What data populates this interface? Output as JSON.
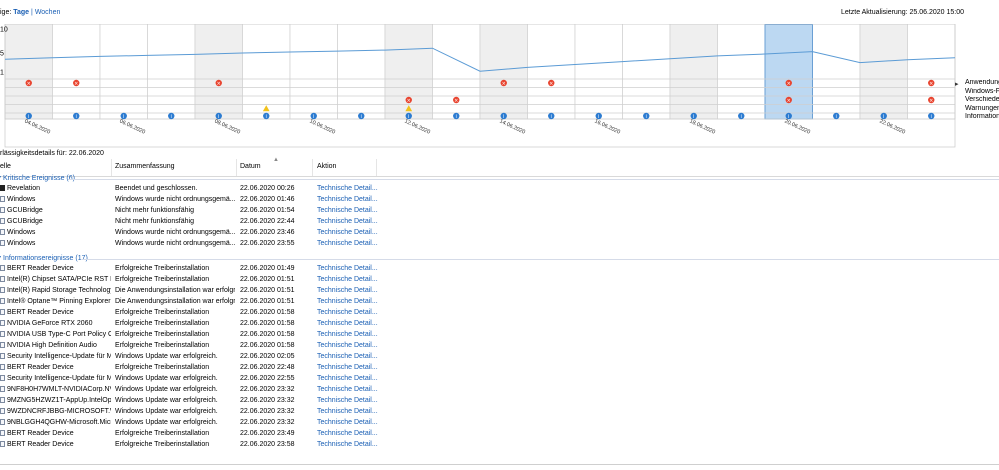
{
  "top": {
    "view_label": "ige:",
    "view_days": "Tage",
    "separator": "|",
    "view_weeks": "Wochen",
    "last_update": "Letzte Aktualisierung: 25.06.2020 15:00"
  },
  "chart": {
    "y_ticks": [
      "10",
      "5",
      "1"
    ],
    "stability_index": [
      3.7,
      4.0,
      4.3,
      4.5,
      4.7,
      5.0,
      5.2,
      5.4,
      5.6,
      6.0,
      1.2,
      2.0,
      2.6,
      3.2,
      3.8,
      4.4,
      4.8,
      5.3,
      3.0,
      3.6,
      4.0
    ],
    "selected_column": 16,
    "gray_columns": [
      0,
      4,
      8,
      10,
      14,
      16,
      18
    ],
    "date_labels": [
      "04.06.2020",
      "06.06.2020",
      "08.06.2020",
      "10.06.2020",
      "12.06.2020",
      "14.06.2020",
      "16.06.2020",
      "18.06.2020",
      "20.06.2020",
      "22.06.2020",
      "24.06.2020"
    ],
    "rows": {
      "app_failures": [
        0,
        1,
        4,
        10,
        11,
        16,
        19
      ],
      "windows_failures": [
        8,
        16,
        19
      ],
      "misc_failures": [
        9
      ],
      "warnings": [
        5,
        8
      ],
      "information": [
        0,
        1,
        2,
        3,
        4,
        5,
        6,
        7,
        8,
        9,
        10,
        11,
        12,
        13,
        14,
        15,
        16,
        17,
        18,
        19
      ]
    },
    "colors": {
      "line": "#5b9bd5",
      "selected": "#bcd8f2",
      "gray": "#efefef",
      "critical": "#e8432e",
      "info": "#2b7bd1",
      "warning": "#f2c21b"
    },
    "legend": [
      "Anwendungs",
      "Windows-Fe",
      "Verschieden",
      "Warnungen",
      "Information"
    ]
  },
  "details": {
    "title": "rlässigkeitsdetails für: 22.06.2020"
  },
  "columns": {
    "source": "elle",
    "summary": "Zusammenfassung",
    "date": "Datum",
    "action": "Aktion"
  },
  "groups": [
    {
      "title": "Kritische Ereignisse (6)",
      "rows": [
        {
          "icon": "app-dark-icon",
          "source": "Revelation",
          "summary": "Beendet und geschlossen.",
          "date": "22.06.2020 00:26",
          "action": "Technische Detail..."
        },
        {
          "icon": "window-icon",
          "source": "Windows",
          "summary": "Windows wurde nicht ordnungsgemä...",
          "date": "22.06.2020 01:46",
          "action": "Technische Detail..."
        },
        {
          "icon": "window-icon",
          "source": "GCUBridge",
          "summary": "Nicht mehr funktionsfähig",
          "date": "22.06.2020 01:54",
          "action": "Technische Detail..."
        },
        {
          "icon": "window-icon",
          "source": "GCUBridge",
          "summary": "Nicht mehr funktionsfähig",
          "date": "22.06.2020 22:44",
          "action": "Technische Detail..."
        },
        {
          "icon": "window-icon",
          "source": "Windows",
          "summary": "Windows wurde nicht ordnungsgemä...",
          "date": "22.06.2020 23:46",
          "action": "Technische Detail..."
        },
        {
          "icon": "window-icon",
          "source": "Windows",
          "summary": "Windows wurde nicht ordnungsgemä...",
          "date": "22.06.2020 23:55",
          "action": "Technische Detail..."
        }
      ]
    },
    {
      "title": "Informationsereignisse (17)",
      "rows": [
        {
          "icon": "window-icon",
          "source": "BERT Reader Device",
          "summary": "Erfolgreiche Treiberinstallation",
          "date": "22.06.2020 01:49",
          "action": "Technische Detail..."
        },
        {
          "icon": "window-icon",
          "source": "Intel(R) Chipset SATA/PCIe RST Pre...",
          "summary": "Erfolgreiche Treiberinstallation",
          "date": "22.06.2020 01:51",
          "action": "Technische Detail..."
        },
        {
          "icon": "window-icon",
          "source": "Intel(R) Rapid Storage Technology",
          "summary": "Die Anwendungsinstallation war erfolgr...",
          "date": "22.06.2020 01:51",
          "action": "Technische Detail..."
        },
        {
          "icon": "window-icon",
          "source": "Intel® Optane™ Pinning Explorer ...",
          "summary": "Die Anwendungsinstallation war erfolgr...",
          "date": "22.06.2020 01:51",
          "action": "Technische Detail..."
        },
        {
          "icon": "window-icon",
          "source": "BERT Reader Device",
          "summary": "Erfolgreiche Treiberinstallation",
          "date": "22.06.2020 01:58",
          "action": "Technische Detail..."
        },
        {
          "icon": "window-icon",
          "source": "NVIDIA GeForce RTX 2060",
          "summary": "Erfolgreiche Treiberinstallation",
          "date": "22.06.2020 01:58",
          "action": "Technische Detail..."
        },
        {
          "icon": "window-icon",
          "source": "NVIDIA USB Type-C Port Policy Co...",
          "summary": "Erfolgreiche Treiberinstallation",
          "date": "22.06.2020 01:58",
          "action": "Technische Detail..."
        },
        {
          "icon": "window-icon",
          "source": "NVIDIA High Definition Audio",
          "summary": "Erfolgreiche Treiberinstallation",
          "date": "22.06.2020 01:58",
          "action": "Technische Detail..."
        },
        {
          "icon": "window-icon",
          "source": "Security Intelligence-Update für M...",
          "summary": "Windows Update war erfolgreich.",
          "date": "22.06.2020 02:05",
          "action": "Technische Detail..."
        },
        {
          "icon": "window-icon",
          "source": "BERT Reader Device",
          "summary": "Erfolgreiche Treiberinstallation",
          "date": "22.06.2020 22:48",
          "action": "Technische Detail..."
        },
        {
          "icon": "window-icon",
          "source": "Security Intelligence-Update für M...",
          "summary": "Windows Update war erfolgreich.",
          "date": "22.06.2020 22:55",
          "action": "Technische Detail..."
        },
        {
          "icon": "window-icon",
          "source": "9NF8H0H7WMLT-NVIDIACorp.NVI...",
          "summary": "Windows Update war erfolgreich.",
          "date": "22.06.2020 23:32",
          "action": "Technische Detail..."
        },
        {
          "icon": "window-icon",
          "source": "9MZNG5HZWZ1T-AppUp.IntelOpt...",
          "summary": "Windows Update war erfolgreich.",
          "date": "22.06.2020 23:32",
          "action": "Technische Detail..."
        },
        {
          "icon": "window-icon",
          "source": "9WZDNCRFJBBG-MICROSOFT.WI...",
          "summary": "Windows Update war erfolgreich.",
          "date": "22.06.2020 23:32",
          "action": "Technische Detail..."
        },
        {
          "icon": "window-icon",
          "source": "9NBLGGH4QGHW-Microsoft.Micr...",
          "summary": "Windows Update war erfolgreich.",
          "date": "22.06.2020 23:32",
          "action": "Technische Detail..."
        },
        {
          "icon": "window-icon",
          "source": "BERT Reader Device",
          "summary": "Erfolgreiche Treiberinstallation",
          "date": "22.06.2020 23:49",
          "action": "Technische Detail..."
        },
        {
          "icon": "window-icon",
          "source": "BERT Reader Device",
          "summary": "Erfolgreiche Treiberinstallation",
          "date": "22.06.2020 23:58",
          "action": "Technische Detail..."
        }
      ]
    }
  ]
}
